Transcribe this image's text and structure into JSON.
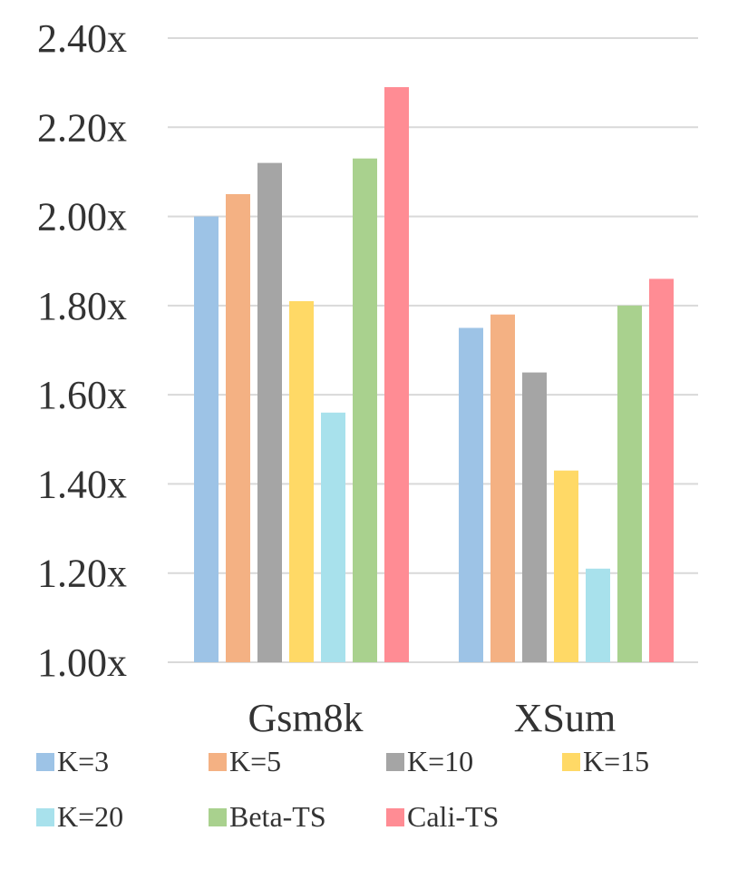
{
  "chart_data": {
    "type": "bar",
    "categories": [
      "Gsm8k",
      "XSum"
    ],
    "series": [
      {
        "name": "K=3",
        "color": "#9dc3e6",
        "values": [
          2.0,
          1.75
        ]
      },
      {
        "name": "K=5",
        "color": "#f4b183",
        "values": [
          2.05,
          1.78
        ]
      },
      {
        "name": "K=10",
        "color": "#a5a5a5",
        "values": [
          2.12,
          1.65
        ]
      },
      {
        "name": "K=15",
        "color": "#ffd966",
        "values": [
          1.81,
          1.43
        ]
      },
      {
        "name": "K=20",
        "color": "#a8e1ec",
        "values": [
          1.56,
          1.21
        ]
      },
      {
        "name": "Beta-TS",
        "color": "#a9d18e",
        "values": [
          2.13,
          1.8
        ]
      },
      {
        "name": "Cali-TS",
        "color": "#ff8c94",
        "values": [
          2.29,
          1.86
        ]
      }
    ],
    "y_ticks": [
      "1.00x",
      "1.20x",
      "1.40x",
      "1.60x",
      "1.80x",
      "2.00x",
      "2.20x",
      "2.40x"
    ],
    "ylim": [
      1.0,
      2.4
    ],
    "grid": true,
    "legend_position": "bottom",
    "title": "",
    "xlabel": "",
    "ylabel": ""
  }
}
